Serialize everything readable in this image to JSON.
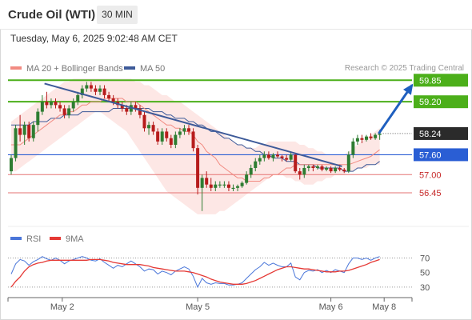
{
  "header": {
    "title": "Crude Oil (WTI)",
    "timeframe": "30 MIN"
  },
  "timestamp": "Tuesday, May 6, 2025 9:02:48 AM CET",
  "legend": {
    "price": [
      {
        "label": "MA 20 + Bollinger Bands",
        "color": "#f28b82"
      },
      {
        "label": "MA 50",
        "color": "#3d5a99"
      }
    ],
    "indicator": [
      {
        "label": "RSI",
        "color": "#4a76d9"
      },
      {
        "label": "9MA",
        "color": "#e53935"
      }
    ]
  },
  "credit": "Research © 2025 Trading Central",
  "colors": {
    "up_candle": "#2e7d32",
    "down_candle": "#b71c1c",
    "bollinger_fill": "#fde3e1",
    "resistance": "#4caf1a",
    "pivot": "#2a5ed4",
    "support": "#e57373",
    "trendline": "#3d5a99",
    "current_price": "#333333"
  },
  "chart_data": [
    {
      "type": "candlestick",
      "title": "Crude Oil (WTI)",
      "timeframe": "30 MIN",
      "x_ticks": [
        "May 2",
        "May 5",
        "May 6",
        "May 8"
      ],
      "ylim": [
        55.75,
        60.05
      ],
      "y_axis_labels": [
        "59.85",
        "59.20",
        "58.24",
        "57.60",
        "57.00",
        "56.45"
      ],
      "levels": [
        {
          "label": "59.85",
          "value": 59.85,
          "kind": "resistance"
        },
        {
          "label": "59.20",
          "value": 59.2,
          "kind": "resistance"
        },
        {
          "label": "58.24",
          "value": 58.24,
          "kind": "current"
        },
        {
          "label": "57.60",
          "value": 57.6,
          "kind": "pivot"
        },
        {
          "label": "57.00",
          "value": 57.0,
          "kind": "support"
        },
        {
          "label": "56.45",
          "value": 56.45,
          "kind": "support"
        }
      ],
      "candles": [
        [
          57.1,
          57.6,
          57.0,
          57.5
        ],
        [
          57.5,
          58.5,
          57.4,
          58.4
        ],
        [
          58.4,
          58.8,
          58.0,
          58.2
        ],
        [
          58.2,
          58.6,
          57.9,
          58.5
        ],
        [
          58.5,
          58.6,
          58.0,
          58.1
        ],
        [
          58.1,
          58.6,
          58.0,
          58.5
        ],
        [
          58.5,
          59.0,
          58.3,
          58.9
        ],
        [
          58.9,
          59.4,
          58.8,
          59.2
        ],
        [
          59.2,
          59.5,
          59.0,
          59.1
        ],
        [
          59.1,
          59.3,
          59.0,
          59.2
        ],
        [
          59.2,
          59.3,
          59.0,
          59.1
        ],
        [
          59.1,
          59.2,
          58.9,
          59.0
        ],
        [
          59.0,
          59.1,
          58.7,
          58.8
        ],
        [
          58.8,
          59.1,
          58.7,
          59.0
        ],
        [
          59.0,
          59.3,
          58.9,
          59.2
        ],
        [
          59.2,
          59.5,
          59.1,
          59.4
        ],
        [
          59.4,
          59.7,
          59.3,
          59.6
        ],
        [
          59.6,
          59.8,
          59.5,
          59.7
        ],
        [
          59.7,
          59.8,
          59.5,
          59.6
        ],
        [
          59.6,
          59.7,
          59.4,
          59.5
        ],
        [
          59.5,
          59.7,
          59.4,
          59.6
        ],
        [
          59.6,
          59.7,
          59.3,
          59.4
        ],
        [
          59.4,
          59.5,
          59.2,
          59.3
        ],
        [
          59.3,
          59.4,
          59.1,
          59.2
        ],
        [
          59.2,
          59.3,
          59.0,
          59.1
        ],
        [
          59.1,
          59.2,
          58.9,
          59.0
        ],
        [
          59.0,
          59.1,
          58.8,
          58.9
        ],
        [
          58.9,
          59.2,
          58.8,
          59.1
        ],
        [
          59.1,
          59.2,
          58.9,
          59.0
        ],
        [
          59.0,
          59.1,
          58.7,
          58.8
        ],
        [
          58.8,
          58.9,
          58.3,
          58.4
        ],
        [
          58.4,
          58.6,
          58.2,
          58.5
        ],
        [
          58.5,
          58.6,
          58.2,
          58.3
        ],
        [
          58.3,
          58.4,
          57.9,
          58.0
        ],
        [
          58.0,
          58.4,
          57.9,
          58.3
        ],
        [
          58.3,
          58.4,
          58.0,
          58.1
        ],
        [
          58.1,
          58.2,
          57.8,
          57.9
        ],
        [
          57.9,
          58.3,
          57.8,
          58.2
        ],
        [
          58.2,
          58.4,
          58.1,
          58.3
        ],
        [
          58.3,
          58.5,
          58.2,
          58.4
        ],
        [
          58.4,
          58.5,
          58.2,
          58.3
        ],
        [
          58.3,
          58.4,
          57.7,
          57.8
        ],
        [
          57.8,
          57.9,
          56.4,
          56.6
        ],
        [
          56.6,
          57.0,
          55.9,
          56.9
        ],
        [
          56.9,
          57.1,
          56.6,
          56.7
        ],
        [
          56.7,
          56.9,
          56.5,
          56.6
        ],
        [
          56.6,
          56.8,
          56.5,
          56.7
        ],
        [
          56.7,
          56.8,
          56.6,
          56.7
        ],
        [
          56.7,
          56.8,
          56.6,
          56.7
        ],
        [
          56.7,
          56.8,
          56.5,
          56.6
        ],
        [
          56.6,
          56.7,
          56.5,
          56.6
        ],
        [
          56.6,
          56.7,
          56.5,
          56.65
        ],
        [
          56.65,
          56.8,
          56.6,
          56.75
        ],
        [
          56.75,
          57.1,
          56.7,
          57.0
        ],
        [
          57.0,
          57.3,
          56.9,
          57.2
        ],
        [
          57.2,
          57.5,
          57.1,
          57.4
        ],
        [
          57.4,
          57.6,
          57.3,
          57.5
        ],
        [
          57.5,
          57.7,
          57.4,
          57.6
        ],
        [
          57.6,
          57.7,
          57.45,
          57.5
        ],
        [
          57.5,
          57.65,
          57.4,
          57.6
        ],
        [
          57.6,
          57.7,
          57.5,
          57.55
        ],
        [
          57.55,
          57.6,
          57.4,
          57.5
        ],
        [
          57.5,
          57.6,
          57.4,
          57.45
        ],
        [
          57.45,
          57.7,
          57.4,
          57.6
        ],
        [
          57.6,
          57.65,
          57.05,
          57.1
        ],
        [
          57.1,
          57.2,
          56.85,
          57.0
        ],
        [
          57.0,
          57.3,
          56.9,
          57.2
        ],
        [
          57.2,
          57.3,
          57.1,
          57.25
        ],
        [
          57.25,
          57.3,
          57.1,
          57.2
        ],
        [
          57.2,
          57.3,
          57.15,
          57.25
        ],
        [
          57.25,
          57.3,
          57.1,
          57.15
        ],
        [
          57.15,
          57.25,
          57.1,
          57.2
        ],
        [
          57.2,
          57.25,
          57.05,
          57.1
        ],
        [
          57.1,
          57.25,
          57.05,
          57.2
        ],
        [
          57.2,
          57.3,
          57.1,
          57.15
        ],
        [
          57.15,
          57.2,
          57.05,
          57.1
        ],
        [
          57.1,
          57.7,
          57.05,
          57.6
        ],
        [
          57.6,
          58.1,
          57.5,
          58.0
        ],
        [
          58.0,
          58.2,
          57.9,
          58.1
        ],
        [
          58.1,
          58.2,
          57.95,
          58.05
        ],
        [
          58.05,
          58.2,
          58.0,
          58.15
        ],
        [
          58.15,
          58.25,
          58.05,
          58.1
        ],
        [
          58.1,
          58.25,
          58.05,
          58.2
        ],
        [
          58.2,
          58.35,
          58.05,
          58.24
        ]
      ],
      "ma50": [
        58.5,
        58.5,
        58.5,
        58.5,
        58.5,
        58.6,
        58.6,
        58.6,
        58.6,
        58.7,
        58.7,
        58.7,
        58.8,
        58.8,
        58.8,
        58.8,
        58.9,
        58.9,
        58.9,
        58.9,
        58.9,
        58.9,
        58.9,
        59.0,
        59.0,
        59.0,
        59.0,
        59.0,
        59.0,
        59.0,
        59.0,
        59.0,
        58.9,
        58.9,
        58.9,
        58.8,
        58.8,
        58.7,
        58.7,
        58.7,
        58.6,
        58.6,
        58.5,
        58.5,
        58.4,
        58.3,
        58.3,
        58.2,
        58.1,
        58.1,
        58.0,
        57.9,
        57.9,
        57.8,
        57.8,
        57.7,
        57.7,
        57.6,
        57.6,
        57.5,
        57.5,
        57.5,
        57.4,
        57.4,
        57.4,
        57.3,
        57.3,
        57.3,
        57.3,
        57.2,
        57.2,
        57.2,
        57.2,
        57.2,
        57.2,
        57.1,
        57.1,
        57.1,
        57.2,
        57.2,
        57.3,
        57.3,
        57.3,
        57.4
      ],
      "ma20": [
        57.9,
        57.9,
        57.9,
        58.0,
        58.1,
        58.2,
        58.3,
        58.4,
        58.5,
        58.6,
        58.7,
        58.8,
        58.8,
        58.9,
        58.9,
        59.0,
        59.1,
        59.1,
        59.2,
        59.2,
        59.2,
        59.3,
        59.3,
        59.3,
        59.3,
        59.3,
        59.2,
        59.2,
        59.2,
        59.1,
        59.0,
        58.9,
        58.8,
        58.7,
        58.6,
        58.5,
        58.5,
        58.4,
        58.4,
        58.3,
        58.3,
        58.2,
        58.0,
        57.9,
        57.7,
        57.6,
        57.5,
        57.3,
        57.2,
        57.1,
        57.0,
        56.9,
        56.9,
        56.8,
        56.8,
        56.8,
        56.8,
        56.9,
        56.9,
        57.0,
        57.0,
        57.1,
        57.2,
        57.2,
        57.3,
        57.3,
        57.3,
        57.3,
        57.3,
        57.3,
        57.3,
        57.3,
        57.3,
        57.3,
        57.3,
        57.3,
        57.3,
        57.35,
        57.4,
        57.45,
        57.5,
        57.55,
        57.65,
        57.75
      ],
      "bb_upper": [
        58.6,
        58.7,
        58.8,
        58.9,
        59.0,
        59.1,
        59.2,
        59.3,
        59.4,
        59.5,
        59.6,
        59.7,
        59.8,
        59.8,
        59.9,
        59.9,
        59.9,
        59.9,
        59.9,
        59.9,
        59.9,
        59.9,
        59.9,
        59.9,
        59.9,
        59.9,
        59.9,
        59.9,
        59.8,
        59.8,
        59.7,
        59.7,
        59.6,
        59.5,
        59.4,
        59.4,
        59.3,
        59.2,
        59.2,
        59.1,
        59.0,
        58.9,
        58.8,
        58.7,
        58.6,
        58.5,
        58.4,
        58.3,
        58.2,
        58.1,
        58.0,
        57.9,
        57.9,
        57.8,
        57.8,
        57.8,
        57.9,
        57.9,
        58.0,
        58.0,
        58.0,
        58.0,
        58.0,
        58.0,
        58.0,
        57.9,
        57.9,
        57.8,
        57.8,
        57.7,
        57.7,
        57.6,
        57.6,
        57.6,
        57.6,
        57.6,
        57.7,
        57.8,
        57.9,
        58.0,
        58.1,
        58.2,
        58.3,
        58.4
      ],
      "bb_lower": [
        57.1,
        57.1,
        57.2,
        57.3,
        57.4,
        57.5,
        57.6,
        57.7,
        57.8,
        57.9,
        58.0,
        58.1,
        58.2,
        58.3,
        58.4,
        58.5,
        58.6,
        58.7,
        58.8,
        58.9,
        58.9,
        58.8,
        58.7,
        58.6,
        58.5,
        58.4,
        58.3,
        58.1,
        57.9,
        57.7,
        57.5,
        57.3,
        57.1,
        56.9,
        56.7,
        56.5,
        56.4,
        56.3,
        56.2,
        56.1,
        56.0,
        55.9,
        55.8,
        55.8,
        55.8,
        55.8,
        55.8,
        55.9,
        55.9,
        56.0,
        56.1,
        56.2,
        56.3,
        56.4,
        56.5,
        56.6,
        56.7,
        56.8,
        56.9,
        57.0,
        57.0,
        57.0,
        56.9,
        56.9,
        56.8,
        56.8,
        56.7,
        56.7,
        56.7,
        56.8,
        56.8,
        56.9,
        56.9,
        57.0,
        57.0,
        57.0,
        57.1,
        57.1,
        57.2,
        57.2,
        57.2,
        57.3,
        57.3,
        57.3
      ],
      "trendline": {
        "start": [
          7.5,
          59.75
        ],
        "end": [
          74.5,
          57.25
        ]
      },
      "forecast_arrow": {
        "start": [
          83.5,
          58.24
        ],
        "end": [
          88.5,
          59.85
        ]
      }
    },
    {
      "type": "line",
      "title": "RSI",
      "x_ticks": [
        "May 2",
        "May 5",
        "May 6",
        "May 8"
      ],
      "ylim": [
        20,
        75
      ],
      "y_ticks": [
        70,
        50,
        30
      ],
      "series": [
        {
          "name": "RSI",
          "color": "#4a76d9",
          "values": [
            48,
            62,
            68,
            66,
            60,
            65,
            68,
            72,
            69,
            67,
            70,
            67,
            62,
            66,
            68,
            70,
            72,
            70,
            67,
            66,
            69,
            64,
            60,
            56,
            60,
            58,
            62,
            66,
            62,
            58,
            52,
            55,
            54,
            48,
            52,
            50,
            47,
            52,
            55,
            58,
            55,
            45,
            30,
            42,
            36,
            34,
            36,
            35,
            35,
            33,
            33,
            34,
            36,
            42,
            48,
            54,
            58,
            64,
            60,
            63,
            60,
            58,
            58,
            63,
            44,
            40,
            50,
            53,
            52,
            54,
            50,
            53,
            50,
            54,
            52,
            50,
            62,
            70,
            70,
            68,
            70,
            67,
            70,
            72
          ]
        },
        {
          "name": "9MA",
          "color": "#e53935",
          "values": [
            30,
            38,
            44,
            52,
            58,
            61,
            63,
            64,
            66,
            67,
            67,
            67,
            67,
            67,
            67,
            67,
            67,
            67,
            68,
            68,
            68,
            67,
            66,
            64,
            63,
            62,
            61,
            61,
            61,
            61,
            60,
            59,
            57,
            56,
            55,
            54,
            53,
            52,
            52,
            52,
            51,
            50,
            48,
            46,
            44,
            41,
            39,
            37,
            36,
            35,
            34,
            34,
            34,
            35,
            37,
            39,
            42,
            45,
            48,
            51,
            54,
            56,
            58,
            58,
            57,
            56,
            55,
            55,
            54,
            53,
            52,
            51,
            51,
            51,
            52,
            52,
            53,
            55,
            57,
            59,
            61,
            64,
            66,
            68
          ]
        }
      ]
    }
  ]
}
